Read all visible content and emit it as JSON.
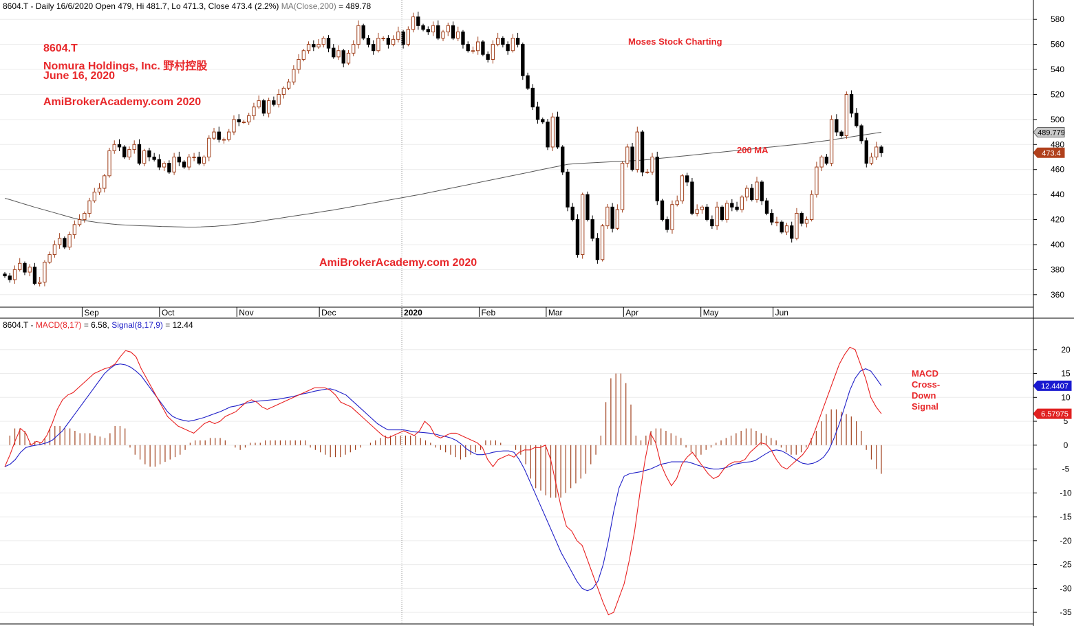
{
  "header_price": {
    "prefix": "8604.T - Daily 16/6/2020 Open 479, Hi 481.7, Lo 471.3, Close 473.4 (2.2%) ",
    "ma_label": "MA(Close,200)",
    "ma_value": " = 489.78"
  },
  "header_macd": {
    "prefix": "8604.T - ",
    "macd_label": "MACD(8,17)",
    "macd_value": " = 6.58, ",
    "signal_label": "Signal(8,17,9)",
    "signal_value": " = 12.44"
  },
  "annotations": {
    "ticker": "8604.T",
    "company": "Nomura Holdings, Inc.  野村控股",
    "date": "June 16, 2020",
    "site1": "AmiBrokerAcademy.com  2020",
    "moses": "Moses Stock Charting",
    "ma200": "200 MA",
    "site2": "AmiBrokerAcademy.com   2020",
    "macd_note": [
      "MACD",
      "Cross-",
      "Down",
      "Signal"
    ]
  },
  "colors": {
    "up_candle": "#a0401c",
    "down_candle": "#000000",
    "ma_line": "#555555",
    "macd_line": "#e82020",
    "signal_line": "#2020c8",
    "histogram": "#a0401c",
    "annotation": "#e8282b"
  },
  "chart_data": [
    {
      "type": "candlestick",
      "panel": "price",
      "ylim": [
        350,
        590
      ],
      "yticks": [
        360,
        380,
        400,
        420,
        440,
        460,
        480,
        500,
        520,
        540,
        560,
        580
      ],
      "xlabels": [
        "Sep",
        "Oct",
        "Nov",
        "Dec",
        "2020",
        "Feb",
        "Mar",
        "Apr",
        "May",
        "Jun"
      ],
      "badges": [
        {
          "label": "489.779",
          "value": 489.779,
          "style": "ma"
        },
        {
          "label": "473.4",
          "value": 473.4,
          "style": "close"
        }
      ],
      "closes": [
        375,
        372,
        380,
        385,
        378,
        382,
        369,
        370,
        386,
        392,
        400,
        405,
        398,
        408,
        416,
        420,
        425,
        435,
        442,
        445,
        455,
        475,
        480,
        478,
        470,
        476,
        480,
        465,
        475,
        470,
        468,
        462,
        465,
        458,
        470,
        466,
        462,
        470,
        470,
        465,
        470,
        485,
        490,
        484,
        484,
        490,
        500,
        498,
        498,
        503,
        510,
        515,
        505,
        515,
        512,
        520,
        525,
        530,
        540,
        548,
        555,
        560,
        558,
        560,
        565,
        557,
        550,
        555,
        545,
        553,
        560,
        575,
        565,
        560,
        555,
        565,
        565,
        560,
        564,
        570,
        560,
        572,
        582,
        575,
        572,
        570,
        575,
        565,
        570,
        575,
        565,
        570,
        560,
        555,
        555,
        562,
        552,
        548,
        560,
        565,
        560,
        555,
        565,
        560,
        535,
        525,
        510,
        500,
        498,
        478,
        502,
        478,
        458,
        430,
        420,
        392,
        440,
        420,
        405,
        388,
        415,
        430,
        413,
        428,
        465,
        478,
        460,
        490,
        458,
        458,
        470,
        435,
        420,
        412,
        432,
        435,
        455,
        450,
        425,
        428,
        430,
        420,
        415,
        430,
        420,
        433,
        430,
        428,
        438,
        445,
        436,
        450,
        435,
        425,
        418,
        418,
        410,
        415,
        405,
        425,
        417,
        420,
        440,
        462,
        470,
        465,
        500,
        490,
        487,
        520,
        505,
        495,
        483,
        465,
        470,
        478,
        473.4
      ],
      "ma200": [
        437,
        436,
        434.8,
        433.6,
        432.4,
        431.2,
        430,
        428.9,
        427.8,
        426.7,
        425.6,
        424.5,
        423.4,
        422.3,
        421.2,
        420.3,
        419.5,
        418.8,
        418.2,
        417.6,
        417.2,
        416.8,
        416.4,
        416,
        415.8,
        415.6,
        415.4,
        415.2,
        415,
        414.9,
        414.8,
        414.7,
        414.5,
        414.4,
        414.3,
        414.2,
        414.1,
        414,
        414,
        414,
        414.1,
        414.3,
        414.5,
        414.7,
        415,
        415.3,
        415.7,
        416.1,
        416.5,
        417,
        417.5,
        418,
        418.6,
        419.2,
        419.8,
        420.4,
        421,
        421.6,
        422.2,
        422.8,
        423.4,
        424,
        424.6,
        425.2,
        425.8,
        426.4,
        427,
        427.6,
        428.3,
        429,
        429.7,
        430.4,
        431.1,
        431.8,
        432.5,
        433.2,
        433.9,
        434.6,
        435.3,
        436,
        436.7,
        437.4,
        438.1,
        438.8,
        439.5,
        440.2,
        441,
        441.8,
        442.6,
        443.4,
        444.2,
        445,
        445.8,
        446.6,
        447.4,
        448.2,
        449,
        449.8,
        450.6,
        451.4,
        452.2,
        453,
        453.8,
        454.6,
        455.4,
        456.2,
        457,
        457.8,
        458.6,
        459.4,
        460.2,
        461,
        461.8,
        462.6,
        463.4,
        464.2,
        464.5,
        464.8,
        465,
        465.2,
        465.4,
        465.6,
        465.8,
        466,
        466.2,
        466.4,
        466.6,
        466.8,
        467,
        467.2,
        467.5,
        467.8,
        468.2,
        468.6,
        469,
        469.4,
        469.8,
        470.2,
        470.6,
        471,
        471.4,
        471.8,
        472.2,
        472.6,
        473,
        473.4,
        473.8,
        474.2,
        474.6,
        475,
        475.4,
        475.8,
        476.2,
        476.6,
        477,
        477.4,
        477.8,
        478.2,
        478.6,
        479,
        479.4,
        479.8,
        480.2,
        480.7,
        481.2,
        481.7,
        482.2,
        482.7,
        483.2,
        483.8,
        484.4,
        485,
        485.6,
        486.2,
        486.8,
        487.4,
        488,
        488.6,
        489.2,
        489.78
      ]
    },
    {
      "type": "line+histogram",
      "panel": "macd",
      "ylim": [
        -37,
        24
      ],
      "yticks": [
        20,
        15,
        10,
        5,
        0,
        -5,
        -10,
        -15,
        -20,
        -25,
        -30,
        -35
      ],
      "badges": [
        {
          "label": "12.4407",
          "value": 12.44,
          "style": "signal"
        },
        {
          "label": "6.57975",
          "value": 6.58,
          "style": "macd"
        }
      ],
      "macd": [
        -4.5,
        -2,
        1,
        3.5,
        2.5,
        0,
        0.8,
        0.5,
        2,
        4.5,
        7.5,
        9.5,
        10.5,
        11,
        12,
        13,
        14,
        15,
        15.5,
        16,
        16.3,
        17,
        18.5,
        19.8,
        19.5,
        18.5,
        16,
        14,
        12,
        10,
        8,
        6,
        5,
        4,
        3.5,
        3,
        2.5,
        3.5,
        4.5,
        5,
        4.5,
        5,
        6,
        6.5,
        7,
        8,
        9,
        9.5,
        9,
        8,
        7.5,
        8,
        8.5,
        9,
        9.5,
        10,
        10.5,
        11,
        11.5,
        12,
        12,
        12,
        11.5,
        10.5,
        9,
        8.5,
        8,
        7,
        6,
        5,
        4,
        3,
        2,
        1.5,
        2,
        2.5,
        3,
        2.5,
        2,
        3,
        5,
        4,
        2,
        1.5,
        2,
        2.5,
        2.5,
        2,
        1.5,
        1,
        0.5,
        -0.5,
        -3,
        -4.5,
        -3,
        -2.5,
        -2,
        -2.5,
        -1.5,
        -1,
        -1,
        -0.5,
        -0.5,
        0,
        -3,
        -8,
        -13,
        -17,
        -18,
        -20,
        -21,
        -24,
        -27,
        -30,
        -33,
        -35.5,
        -35,
        -32,
        -29,
        -24,
        -18,
        -10,
        -3,
        2.5,
        0.5,
        -4,
        -6.5,
        -8.5,
        -7,
        -4,
        -2.5,
        -1.5,
        -3,
        -4.5,
        -6,
        -7,
        -6.5,
        -5,
        -4,
        -3.5,
        -3.5,
        -3,
        -1.5,
        -0.5,
        0.5,
        0.2,
        -1,
        -3,
        -4.5,
        -5,
        -4,
        -3,
        -2,
        -0.5,
        2,
        5,
        8,
        11,
        14,
        17,
        19,
        20.5,
        20,
        17,
        14,
        10,
        8,
        6.58
      ],
      "signal": [
        -4.5,
        -4,
        -3,
        -1.5,
        -0.5,
        -0.2,
        0,
        0.2,
        0.5,
        1,
        2,
        3,
        4.5,
        6,
        7.5,
        9,
        10.5,
        12,
        13.5,
        15,
        16,
        16.8,
        17,
        16.8,
        16.3,
        15.5,
        14.5,
        13,
        11.5,
        10,
        8.5,
        7,
        6,
        5.5,
        5.2,
        5,
        5.2,
        5.5,
        5.8,
        6.2,
        6.6,
        7,
        7.5,
        8,
        8.2,
        8.5,
        8.8,
        9,
        9.2,
        9.3,
        9.4,
        9.5,
        9.6,
        9.8,
        10,
        10.2,
        10.5,
        10.8,
        11,
        11.3,
        11.5,
        11.7,
        11.8,
        11.5,
        11,
        10.5,
        9.5,
        8.5,
        7.5,
        6.5,
        5.5,
        4.5,
        3.8,
        3.2,
        3.2,
        3.2,
        3.2,
        3,
        2.8,
        2.7,
        2.6,
        2.5,
        2.3,
        2,
        1.8,
        1.5,
        1,
        0.2,
        -0.8,
        -1.5,
        -2,
        -2,
        -1.8,
        -1.5,
        -1.3,
        -1.2,
        -1.2,
        -1.5,
        -3,
        -5,
        -7.5,
        -10,
        -12.5,
        -15,
        -17.5,
        -20,
        -22.5,
        -24.5,
        -26.5,
        -28.5,
        -30,
        -30.5,
        -30,
        -28.5,
        -25,
        -20,
        -14,
        -9,
        -6.5,
        -6,
        -5.8,
        -5.6,
        -5.3,
        -5,
        -4.5,
        -4,
        -3.8,
        -3.5,
        -3.5,
        -3.5,
        -3.5,
        -3.8,
        -4.2,
        -4.5,
        -4.8,
        -5,
        -5,
        -4.8,
        -4.5,
        -4,
        -3.8,
        -3.6,
        -3.5,
        -3.2,
        -2.5,
        -1.8,
        -1.2,
        -1,
        -1.2,
        -1.8,
        -2.5,
        -3.2,
        -3.8,
        -4,
        -3.8,
        -3.3,
        -2.5,
        -1,
        1.5,
        4.5,
        8,
        11.5,
        14,
        15.5,
        16,
        15.5,
        14,
        12.4407
      ],
      "histogram": [
        0,
        2,
        3.5,
        3.5,
        3,
        0.5,
        0.8,
        0.5,
        1.5,
        3.5,
        4,
        4,
        3.5,
        3.5,
        3,
        2.5,
        2.5,
        2.5,
        2,
        1.8,
        1.5,
        2.5,
        4,
        4,
        3.5,
        -0.5,
        -2,
        -3,
        -4,
        -4.5,
        -4.5,
        -4,
        -3.5,
        -3,
        -2.5,
        -2,
        -1,
        0.5,
        1,
        1,
        1,
        1.5,
        1.5,
        1.5,
        1,
        0,
        -0.5,
        -1,
        -0.5,
        0.5,
        0.5,
        0.5,
        1,
        1,
        1,
        1,
        1,
        1,
        1,
        1,
        1,
        -0.5,
        -1,
        -1.5,
        -2,
        -2.5,
        -2.5,
        -2.5,
        -2,
        -1.5,
        -1,
        -0.5,
        0,
        0.5,
        1,
        1.5,
        2,
        2,
        2,
        2,
        2,
        2,
        2,
        1.5,
        1,
        0.5,
        -0.5,
        -1,
        -1.5,
        -2,
        -2.5,
        -3,
        -2.5,
        -2,
        -1.5,
        -1,
        1,
        1,
        1,
        0.5,
        0,
        0,
        -1,
        -2,
        -4,
        -7,
        -9,
        -9.5,
        -10.5,
        -11,
        -11,
        -11,
        -10,
        -9,
        -8,
        -7,
        -6,
        -4,
        -2,
        2,
        9,
        14,
        15,
        15,
        13,
        8.5,
        2,
        1,
        2,
        3,
        3.5,
        3.5,
        3,
        2.5,
        2,
        1.5,
        -0.5,
        -1.5,
        -2.5,
        -2,
        -1,
        -0.5,
        0.5,
        1,
        1.5,
        2,
        2.5,
        3,
        3.5,
        3.5,
        3,
        2.5,
        2,
        1.5,
        1,
        -0.5,
        -1.5,
        -2,
        -2,
        -1.5,
        -0.5,
        1.5,
        3,
        5,
        6.5,
        7.5,
        7.5,
        7,
        6.5,
        6,
        5,
        3,
        -1,
        -3,
        -5,
        -6
      ]
    }
  ]
}
